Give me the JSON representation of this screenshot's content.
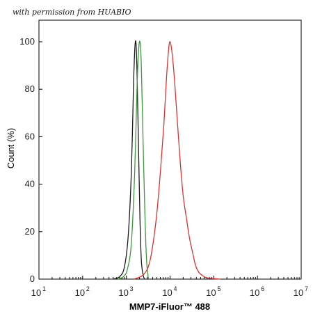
{
  "watermark": "with permission from HUABIO",
  "chart_data": {
    "type": "line",
    "title": "",
    "xlabel": "MMP7-iFluor™ 488",
    "ylabel": "Count  (%)",
    "x_scale": "log",
    "xlim": [
      10,
      10000000
    ],
    "ylim": [
      0,
      100
    ],
    "x_tick_labels": [
      "10",
      "10",
      "10",
      "10",
      "10",
      "10",
      "10"
    ],
    "x_tick_exponents": [
      "1",
      "2",
      "3",
      "4",
      "5",
      "6",
      "7"
    ],
    "x_ticks": [
      10,
      100,
      1000,
      10000,
      100000,
      1000000,
      10000000
    ],
    "y_ticks": [
      0,
      20,
      40,
      60,
      80,
      100
    ],
    "y_tick_labels": [
      "0",
      "20",
      "40",
      "60",
      "80",
      "100"
    ],
    "grid": false,
    "colors": {
      "black": "#1a1a1a",
      "green": "#3a9a3a",
      "red": "#e03030"
    },
    "series": [
      {
        "color": "#1a1a1a",
        "x": [
          500,
          700,
          900,
          1100,
          1300,
          1450,
          1550,
          1650,
          1750,
          1900,
          2050,
          2200,
          2400,
          2600
        ],
        "y": [
          0,
          1,
          5,
          18,
          45,
          80,
          96,
          100,
          88,
          55,
          25,
          8,
          2,
          0
        ]
      },
      {
        "color": "#3a9a3a",
        "x": [
          650,
          850,
          1050,
          1300,
          1550,
          1750,
          1900,
          2050,
          2200,
          2400,
          2650,
          2900,
          3200
        ],
        "y": [
          0,
          1,
          4,
          15,
          45,
          80,
          96,
          100,
          90,
          60,
          28,
          8,
          0
        ]
      },
      {
        "color": "#e03030",
        "x": [
          1500,
          2500,
          3500,
          4800,
          6000,
          7200,
          8300,
          9300,
          10000,
          11000,
          12500,
          14500,
          17000,
          20000,
          24000,
          28000,
          33000,
          38000,
          45000,
          55000,
          70000,
          100000,
          140000
        ],
        "y": [
          0,
          2,
          8,
          25,
          45,
          65,
          85,
          97,
          100,
          96,
          85,
          68,
          50,
          35,
          25,
          17,
          11,
          6,
          3,
          1.5,
          0.5,
          0.2,
          0
        ]
      }
    ]
  }
}
